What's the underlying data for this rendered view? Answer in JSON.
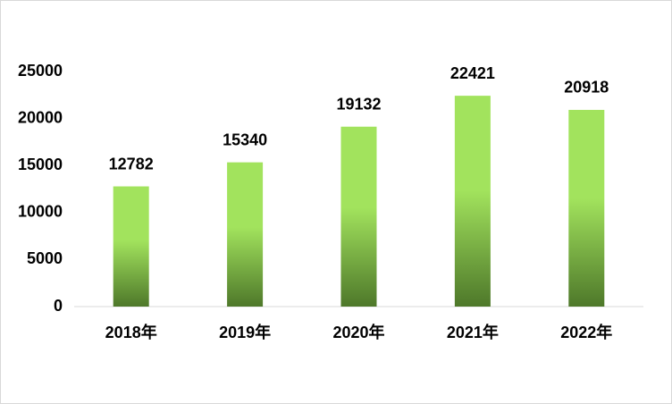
{
  "chart_data": {
    "type": "bar",
    "categories": [
      "2018年",
      "2019年",
      "2020年",
      "2021年",
      "2022年"
    ],
    "values": [
      12782,
      15340,
      19132,
      22421,
      20918
    ],
    "gradient": [
      "#a2e35d",
      "#4e782a"
    ],
    "ylim": [
      0,
      25000
    ],
    "yticks": [
      0,
      5000,
      10000,
      15000,
      20000,
      25000
    ],
    "grid": false
  }
}
